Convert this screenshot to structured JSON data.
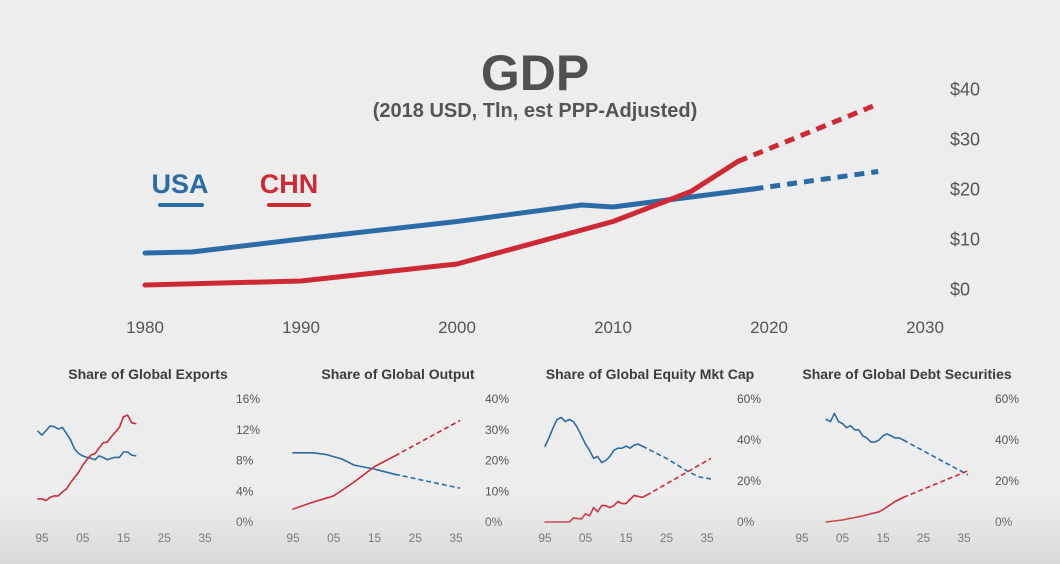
{
  "colors": {
    "usa": "#2b6ca7",
    "chn": "#cd2a36",
    "text": "#555555",
    "title": "#505050",
    "background": "#ededed"
  },
  "main": {
    "title": "GDP",
    "subtitle": "(2018 USD, Tln, est PPP-Adjusted)",
    "legend": [
      {
        "label": "USA",
        "color": "#2b6ca7"
      },
      {
        "label": "CHN",
        "color": "#cd2a36"
      }
    ]
  },
  "chart_data": [
    {
      "type": "line",
      "title": "GDP",
      "subtitle": "(2018 USD, Tln, est PPP-Adjusted)",
      "xlim": [
        1980,
        2030
      ],
      "ylim": [
        0,
        40
      ],
      "x_ticks": [
        1980,
        1990,
        2000,
        2010,
        2020,
        2030
      ],
      "x_tick_labels": [
        "1980",
        "1990",
        "2000",
        "2010",
        "2020",
        "2030"
      ],
      "y_ticks": [
        0,
        10,
        20,
        30,
        40
      ],
      "y_tick_labels": [
        "$0",
        "$10",
        "$20",
        "$30",
        "$40"
      ],
      "y_axis_side": "right",
      "grid": false,
      "legend_position": "top-left",
      "series": [
        {
          "name": "USA",
          "color": "#2b6ca7",
          "points": [
            [
              1980,
              7.2
            ],
            [
              1983,
              7.4
            ],
            [
              1990,
              10
            ],
            [
              2000,
              13.5
            ],
            [
              2008,
              16.8
            ],
            [
              2010,
              16.4
            ],
            [
              2015,
              18.4
            ],
            [
              2019,
              20
            ]
          ],
          "projected": [
            [
              2019,
              20
            ],
            [
              2027,
              23.5
            ]
          ]
        },
        {
          "name": "CHN",
          "color": "#cd2a36",
          "points": [
            [
              1980,
              0.8
            ],
            [
              1990,
              1.6
            ],
            [
              2000,
              5
            ],
            [
              2010,
              13.5
            ],
            [
              2015,
              19.5
            ],
            [
              2018,
              25.5
            ]
          ],
          "projected": [
            [
              2018,
              25.5
            ],
            [
              2027,
              37
            ]
          ]
        }
      ]
    },
    {
      "type": "line",
      "title": "Share of Global Exports",
      "xlim": [
        1994,
        2036
      ],
      "ylim": [
        0,
        16
      ],
      "x_ticks": [
        1995,
        2005,
        2015,
        2025,
        2035
      ],
      "x_tick_labels": [
        "95",
        "05",
        "15",
        "25",
        "35"
      ],
      "y_ticks": [
        0,
        4,
        8,
        12,
        16
      ],
      "y_tick_labels": [
        "0%",
        "4%",
        "8%",
        "12%",
        "16%"
      ],
      "y_axis_side": "right",
      "series": [
        {
          "name": "USA",
          "color": "#2b6ca7",
          "points": [
            [
              1994,
              11.8
            ],
            [
              1995,
              11.3
            ],
            [
              1996,
              11.9
            ],
            [
              1997,
              12.5
            ],
            [
              1998,
              12.4
            ],
            [
              1999,
              12.1
            ],
            [
              2000,
              12.3
            ],
            [
              2001,
              11.5
            ],
            [
              2002,
              10.7
            ],
            [
              2003,
              9.5
            ],
            [
              2004,
              8.9
            ],
            [
              2005,
              8.6
            ],
            [
              2006,
              8.4
            ],
            [
              2007,
              8.3
            ],
            [
              2008,
              8.1
            ],
            [
              2009,
              8.6
            ],
            [
              2010,
              8.4
            ],
            [
              2011,
              8.1
            ],
            [
              2012,
              8.3
            ],
            [
              2013,
              8.4
            ],
            [
              2014,
              8.4
            ],
            [
              2015,
              9.1
            ],
            [
              2016,
              9.1
            ],
            [
              2017,
              8.7
            ],
            [
              2018,
              8.6
            ]
          ],
          "projected": []
        },
        {
          "name": "CHN",
          "color": "#cd2a36",
          "points": [
            [
              1994,
              3.0
            ],
            [
              1995,
              3.0
            ],
            [
              1996,
              2.8
            ],
            [
              1997,
              3.2
            ],
            [
              1998,
              3.4
            ],
            [
              1999,
              3.4
            ],
            [
              2000,
              3.9
            ],
            [
              2001,
              4.3
            ],
            [
              2002,
              5.1
            ],
            [
              2003,
              5.8
            ],
            [
              2004,
              6.5
            ],
            [
              2005,
              7.4
            ],
            [
              2006,
              8.1
            ],
            [
              2007,
              8.7
            ],
            [
              2008,
              8.9
            ],
            [
              2009,
              9.6
            ],
            [
              2010,
              10.3
            ],
            [
              2011,
              10.4
            ],
            [
              2012,
              11.1
            ],
            [
              2013,
              11.7
            ],
            [
              2014,
              12.3
            ],
            [
              2015,
              13.7
            ],
            [
              2016,
              13.9
            ],
            [
              2017,
              12.9
            ],
            [
              2018,
              12.8
            ]
          ],
          "projected": []
        }
      ]
    },
    {
      "type": "line",
      "title": "Share of Global Output",
      "xlim": [
        1994,
        2036
      ],
      "ylim": [
        0,
        40
      ],
      "x_ticks": [
        1995,
        2005,
        2015,
        2025,
        2035
      ],
      "x_tick_labels": [
        "95",
        "05",
        "15",
        "25",
        "35"
      ],
      "y_ticks": [
        0,
        10,
        20,
        30,
        40
      ],
      "y_tick_labels": [
        "0%",
        "10%",
        "20%",
        "30%",
        "40%"
      ],
      "y_axis_side": "right",
      "series": [
        {
          "name": "USA",
          "color": "#2b6ca7",
          "points": [
            [
              1995,
              22.5
            ],
            [
              2000,
              22.5
            ],
            [
              2003,
              22
            ],
            [
              2007,
              20.5
            ],
            [
              2010,
              18.5
            ],
            [
              2015,
              17.2
            ],
            [
              2020,
              15.5
            ]
          ],
          "projected": [
            [
              2020,
              15.5
            ],
            [
              2036,
              11
            ]
          ]
        },
        {
          "name": "CHN",
          "color": "#cd2a36",
          "points": [
            [
              1995,
              4.2
            ],
            [
              2000,
              6.5
            ],
            [
              2005,
              8.5
            ],
            [
              2010,
              13
            ],
            [
              2015,
              18
            ],
            [
              2020,
              21.5
            ]
          ],
          "projected": [
            [
              2020,
              21.5
            ],
            [
              2036,
              33
            ]
          ]
        }
      ]
    },
    {
      "type": "line",
      "title": "Share of Global Equity Mkt Cap",
      "xlim": [
        1994,
        2036
      ],
      "ylim": [
        0,
        60
      ],
      "x_ticks": [
        1995,
        2005,
        2015,
        2025,
        2035
      ],
      "x_tick_labels": [
        "95",
        "05",
        "15",
        "25",
        "35"
      ],
      "y_ticks": [
        0,
        20,
        40,
        60
      ],
      "y_tick_labels": [
        "0%",
        "20%",
        "40%",
        "60%"
      ],
      "y_axis_side": "right",
      "series": [
        {
          "name": "USA",
          "color": "#2b6ca7",
          "points": [
            [
              1995,
              37
            ],
            [
              1996,
              41
            ],
            [
              1997,
              46
            ],
            [
              1998,
              50
            ],
            [
              1999,
              51
            ],
            [
              2000,
              49
            ],
            [
              2001,
              50
            ],
            [
              2002,
              49
            ],
            [
              2003,
              46
            ],
            [
              2004,
              42
            ],
            [
              2005,
              38
            ],
            [
              2006,
              35
            ],
            [
              2007,
              31
            ],
            [
              2008,
              32
            ],
            [
              2009,
              29
            ],
            [
              2010,
              30
            ],
            [
              2011,
              32
            ],
            [
              2012,
              35
            ],
            [
              2013,
              36
            ],
            [
              2014,
              36
            ],
            [
              2015,
              37
            ],
            [
              2016,
              36
            ],
            [
              2017,
              37.5
            ],
            [
              2018,
              38
            ],
            [
              2019,
              37
            ]
          ],
          "projected": [
            [
              2019,
              37
            ],
            [
              2025,
              31
            ],
            [
              2030,
              25
            ],
            [
              2033,
              22
            ],
            [
              2036,
              21
            ]
          ]
        },
        {
          "name": "CHN",
          "color": "#cd2a36",
          "points": [
            [
              1995,
              0
            ],
            [
              2001,
              0
            ],
            [
              2002,
              2
            ],
            [
              2004,
              1.5
            ],
            [
              2005,
              4
            ],
            [
              2006,
              3
            ],
            [
              2007,
              7
            ],
            [
              2008,
              5
            ],
            [
              2009,
              8
            ],
            [
              2010,
              8
            ],
            [
              2011,
              7
            ],
            [
              2012,
              8
            ],
            [
              2013,
              10
            ],
            [
              2014,
              9
            ],
            [
              2015,
              9
            ],
            [
              2016,
              11
            ],
            [
              2017,
              13
            ],
            [
              2019,
              12
            ],
            [
              2020,
              13
            ]
          ],
          "projected": [
            [
              2020,
              13
            ],
            [
              2036,
              31
            ]
          ]
        }
      ]
    },
    {
      "type": "line",
      "title": "Share of Global Debt Securities",
      "xlim": [
        1994,
        2036
      ],
      "ylim": [
        0,
        60
      ],
      "x_ticks": [
        1995,
        2005,
        2015,
        2025,
        2035
      ],
      "x_tick_labels": [
        "95",
        "05",
        "15",
        "25",
        "35"
      ],
      "y_ticks": [
        0,
        20,
        40,
        60
      ],
      "y_tick_labels": [
        "0%",
        "20%",
        "40%",
        "60%"
      ],
      "y_axis_side": "right",
      "series": [
        {
          "name": "USA",
          "color": "#2b6ca7",
          "points": [
            [
              2001,
              50
            ],
            [
              2002,
              49
            ],
            [
              2003,
              53
            ],
            [
              2004,
              49
            ],
            [
              2005,
              48
            ],
            [
              2006,
              46
            ],
            [
              2007,
              47
            ],
            [
              2008,
              45
            ],
            [
              2009,
              45
            ],
            [
              2010,
              42
            ],
            [
              2011,
              41
            ],
            [
              2012,
              39
            ],
            [
              2013,
              39
            ],
            [
              2014,
              40
            ],
            [
              2015,
              42
            ],
            [
              2016,
              43
            ],
            [
              2017,
              42
            ],
            [
              2018,
              41
            ],
            [
              2019,
              41
            ],
            [
              2020,
              40
            ]
          ],
          "projected": [
            [
              2020,
              40
            ],
            [
              2036,
              23
            ]
          ]
        },
        {
          "name": "CHN",
          "color": "#cd2a36",
          "points": [
            [
              2001,
              0
            ],
            [
              2005,
              1
            ],
            [
              2010,
              3
            ],
            [
              2014,
              5
            ],
            [
              2015,
              6
            ],
            [
              2018,
              10
            ],
            [
              2020,
              12
            ]
          ],
          "projected": [
            [
              2020,
              12
            ],
            [
              2036,
              25
            ]
          ]
        }
      ]
    }
  ]
}
